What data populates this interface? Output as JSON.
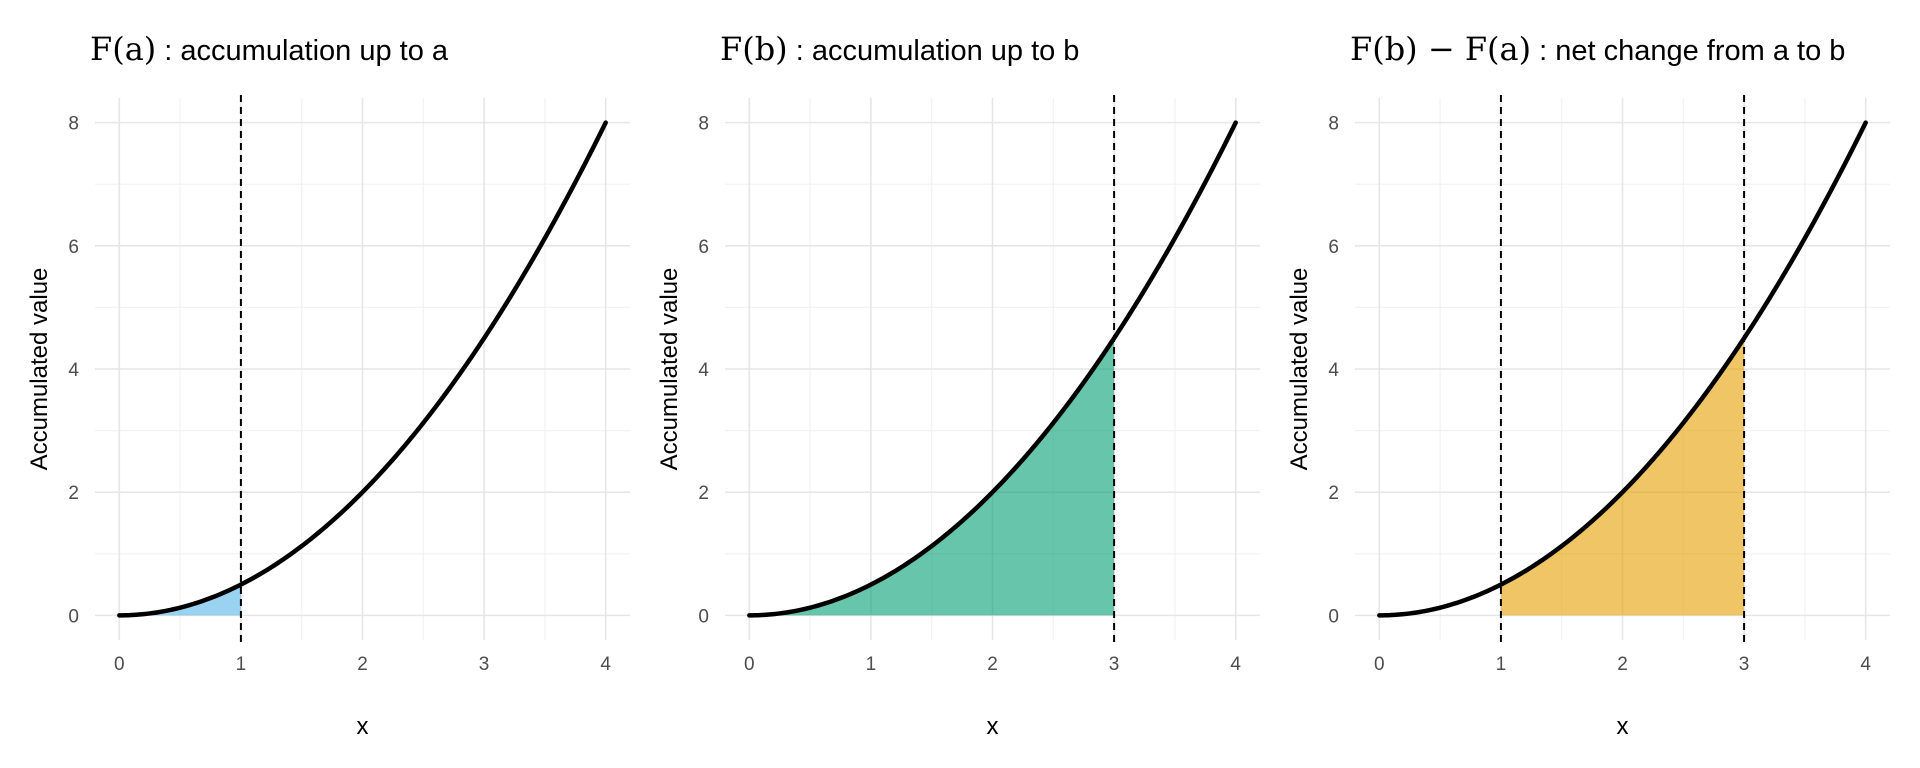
{
  "chart_data": [
    {
      "type": "area",
      "title_prefix": "F(a)",
      "title": " : accumulation up to a",
      "xlabel": "x",
      "ylabel": "Accumulated value",
      "xlim": [
        0,
        4
      ],
      "ylim": [
        0,
        8
      ],
      "xticks": [
        "0",
        "1",
        "2",
        "3",
        "4"
      ],
      "yticks": [
        "0",
        "2",
        "4",
        "6",
        "8"
      ],
      "grid": true,
      "curve": {
        "function": "x^2/2",
        "x": [
          0,
          0.5,
          1,
          1.5,
          2,
          2.5,
          3,
          3.5,
          4
        ],
        "y": [
          0,
          0.125,
          0.5,
          1.125,
          2,
          3.125,
          4.5,
          6.125,
          8
        ]
      },
      "shaded_region": {
        "from": 0,
        "to": 1,
        "color": "#56B4E9"
      },
      "vlines": [
        1
      ]
    },
    {
      "type": "area",
      "title_prefix": "F(b)",
      "title": " : accumulation up to b",
      "xlabel": "x",
      "ylabel": "Accumulated value",
      "xlim": [
        0,
        4
      ],
      "ylim": [
        0,
        8
      ],
      "xticks": [
        "0",
        "1",
        "2",
        "3",
        "4"
      ],
      "yticks": [
        "0",
        "2",
        "4",
        "6",
        "8"
      ],
      "grid": true,
      "curve": {
        "function": "x^2/2",
        "x": [
          0,
          0.5,
          1,
          1.5,
          2,
          2.5,
          3,
          3.5,
          4
        ],
        "y": [
          0,
          0.125,
          0.5,
          1.125,
          2,
          3.125,
          4.5,
          6.125,
          8
        ]
      },
      "shaded_region": {
        "from": 0,
        "to": 3,
        "color": "#009E73"
      },
      "vlines": [
        3
      ]
    },
    {
      "type": "area",
      "title_prefix": "F(b) − F(a)",
      "title": " : net change from a to b",
      "xlabel": "x",
      "ylabel": "Accumulated value",
      "xlim": [
        0,
        4
      ],
      "ylim": [
        0,
        8
      ],
      "xticks": [
        "0",
        "1",
        "2",
        "3",
        "4"
      ],
      "yticks": [
        "0",
        "2",
        "4",
        "6",
        "8"
      ],
      "grid": true,
      "curve": {
        "function": "x^2/2",
        "x": [
          0,
          0.5,
          1,
          1.5,
          2,
          2.5,
          3,
          3.5,
          4
        ],
        "y": [
          0,
          0.125,
          0.5,
          1.125,
          2,
          3.125,
          4.5,
          6.125,
          8
        ]
      },
      "shaded_region": {
        "from": 1,
        "to": 3,
        "color": "#E69F00"
      },
      "vlines": [
        1,
        3
      ]
    }
  ]
}
